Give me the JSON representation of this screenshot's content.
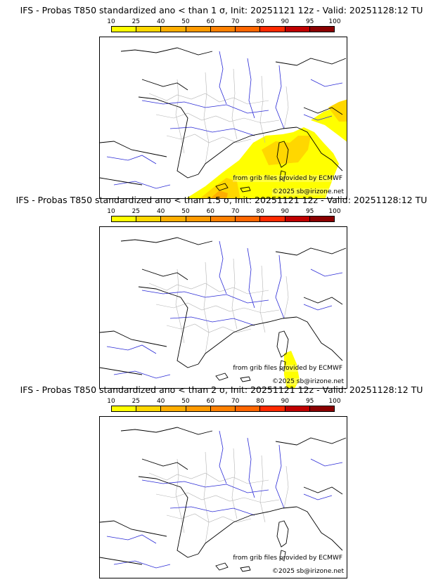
{
  "scale": {
    "labels": [
      "10",
      "25",
      "40",
      "50",
      "60",
      "70",
      "80",
      "90",
      "95",
      "100"
    ],
    "colors": [
      "#ffff00",
      "#ffd700",
      "#ffae00",
      "#ff9a00",
      "#ff8000",
      "#ff6600",
      "#ff2a00",
      "#c00000",
      "#8b0000"
    ]
  },
  "credits": {
    "grib": "from grib files provided by ECMWF",
    "copyright": "©2025 sb@irizone.net"
  },
  "map_colors": {
    "coast": "#000000",
    "rivers": "#2a2ad6",
    "regions": "#b4b4b4"
  },
  "panels": [
    {
      "title": "IFS - Probas T850  standardized ano < than 1 σ, Init: 20251121 12z - Valid: 20251128:12 TU",
      "extent": "large"
    },
    {
      "title": "IFS - Probas T850  standardized ano < than 1.5 σ, Init: 20251121 12z - Valid: 20251128:12 TU",
      "extent": "small"
    },
    {
      "title": "IFS - Probas T850  standardized ano < than 2 σ, Init: 20251121 12z - Valid: 20251128:12 TU",
      "extent": "none"
    }
  ]
}
